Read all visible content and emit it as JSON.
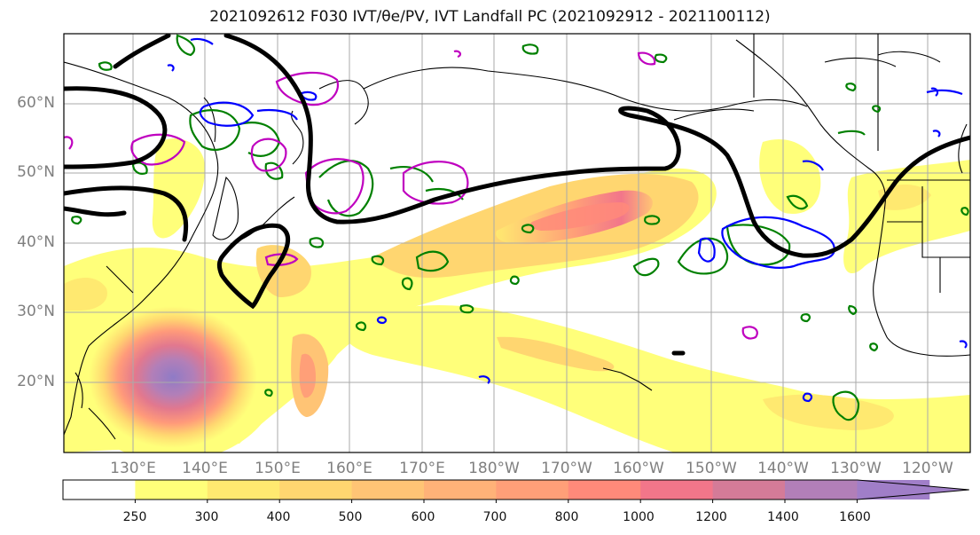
{
  "title": "2021092612 F030 IVT/θe/PV, IVT Landfall PC (2021092912 - 2021100112)",
  "map": {
    "lat_labels": [
      "60°N",
      "50°N",
      "40°N",
      "30°N",
      "20°N"
    ],
    "lon_labels": [
      "130°E",
      "140°E",
      "150°E",
      "160°E",
      "170°E",
      "180°W",
      "170°W",
      "160°W",
      "150°W",
      "140°W",
      "130°W",
      "120°W"
    ],
    "contour_colors": {
      "theta_e": "#000000",
      "pv_green": "#008000",
      "pv_blue": "#0000ff",
      "pv_magenta": "#bf00bf",
      "coast": "#000000"
    }
  },
  "colorbar": {
    "labels": [
      "250",
      "300",
      "400",
      "500",
      "600",
      "700",
      "800",
      "1000",
      "1200",
      "1400",
      "1600"
    ],
    "colors": [
      "#ffffff",
      "#ffff7a",
      "#ffe970",
      "#ffd670",
      "#ffc475",
      "#ffb278",
      "#ff9f78",
      "#ff8a7a",
      "#f2768a",
      "#d47b98",
      "#b27fb8",
      "#a07ec8"
    ]
  }
}
